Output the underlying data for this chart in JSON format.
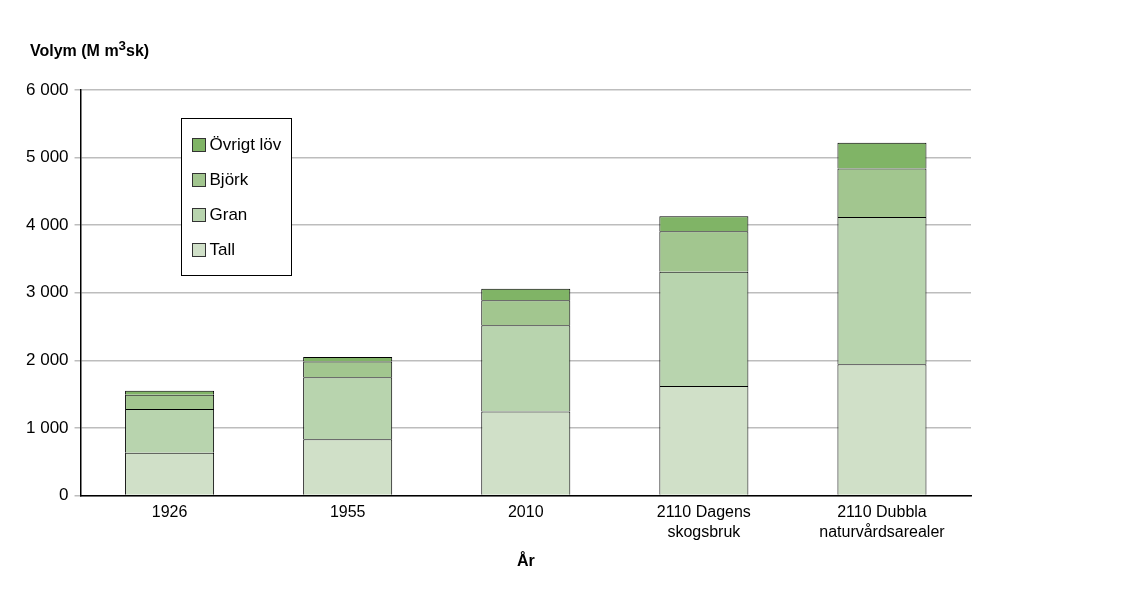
{
  "chart_data": {
    "type": "bar",
    "stacked": true,
    "ylabel": "Volym (M m$^{3}$sk)",
    "xlabel": "År",
    "categories": [
      "1926",
      "1955",
      "2010",
      "2110 Dagens skogsbruk",
      "2110 Dubbla naturvårdsarealer"
    ],
    "series": [
      {
        "name": "Tall",
        "color": "#d0e0c8",
        "values": [
          630,
          830,
          1240,
          1620,
          1940
        ]
      },
      {
        "name": "Gran",
        "color": "#b8d4ae",
        "values": [
          650,
          920,
          1280,
          1690,
          2180
        ]
      },
      {
        "name": "Björk",
        "color": "#a2c68f",
        "values": [
          210,
          230,
          370,
          600,
          720
        ]
      },
      {
        "name": "Övrigt löv",
        "color": "#80b466",
        "values": [
          60,
          70,
          170,
          220,
          380
        ]
      }
    ],
    "ylim": [
      0,
      6000
    ],
    "yticks": [
      {
        "value": 0,
        "label": "0"
      },
      {
        "value": 1000,
        "label": "1 000"
      },
      {
        "value": 2000,
        "label": "2 000"
      },
      {
        "value": 3000,
        "label": "3 000"
      },
      {
        "value": 4000,
        "label": "4 000"
      },
      {
        "value": 5000,
        "label": "5 000"
      },
      {
        "value": 6000,
        "label": "6 000"
      }
    ],
    "grid": "y",
    "legend": "top left"
  }
}
